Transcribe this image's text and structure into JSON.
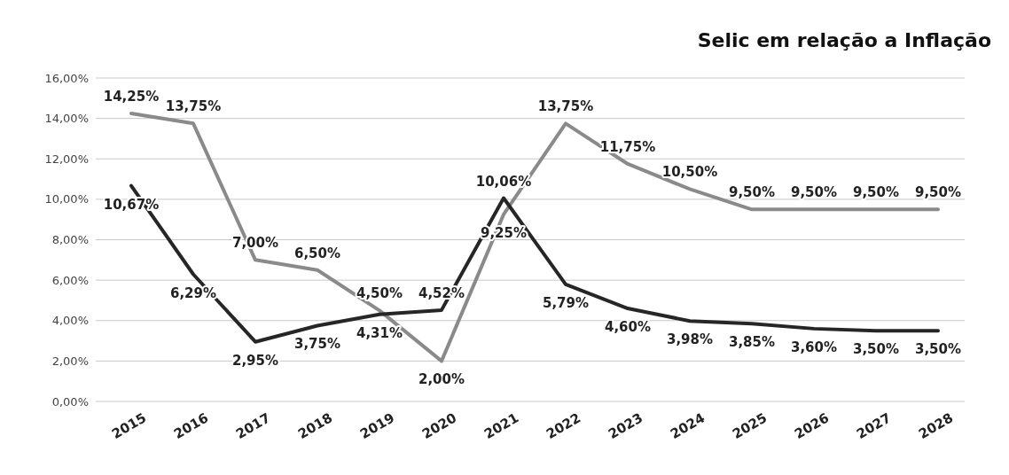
{
  "chart_data": {
    "type": "line",
    "title": "Selic em relação a Inflação",
    "categories": [
      "2015",
      "2016",
      "2017",
      "2018",
      "2019",
      "2020",
      "2021",
      "2022",
      "2023",
      "2024",
      "2025",
      "2026",
      "2027",
      "2028"
    ],
    "series": [
      {
        "color": "#8a8a8a",
        "values": [
          14.25,
          13.75,
          7.0,
          6.5,
          4.5,
          2.0,
          9.25,
          13.75,
          11.75,
          10.5,
          9.5,
          9.5,
          9.5,
          9.5
        ],
        "value_labels": [
          "14,25%",
          "13,75%",
          "7,00%",
          "6,50%",
          "4,50%",
          "2,00%",
          "9,25%",
          "13,75%",
          "11,75%",
          "10,50%",
          "9,50%",
          "9,50%",
          "9,50%",
          "9,50%"
        ]
      },
      {
        "color": "#262626",
        "values": [
          10.67,
          6.29,
          2.95,
          3.75,
          4.31,
          4.52,
          10.06,
          5.79,
          4.6,
          3.98,
          3.85,
          3.6,
          3.5,
          3.5
        ],
        "value_labels": [
          "10,67%",
          "6,29%",
          "2,95%",
          "3,75%",
          "4,31%",
          "4,52%",
          "10,06%",
          "5,79%",
          "4,60%",
          "3,98%",
          "3,85%",
          "3,60%",
          "3,50%",
          "3,50%"
        ]
      }
    ],
    "ylim": [
      0,
      16
    ],
    "yticks": [
      {
        "value": 0,
        "label": "0,00%"
      },
      {
        "value": 2,
        "label": "2,00%"
      },
      {
        "value": 4,
        "label": "4,00%"
      },
      {
        "value": 6,
        "label": "6,00%"
      },
      {
        "value": 8,
        "label": "8,00%"
      },
      {
        "value": 10,
        "label": "10,00%"
      },
      {
        "value": 12,
        "label": "12,00%"
      },
      {
        "value": 14,
        "label": "14,00%"
      },
      {
        "value": 16,
        "label": "16,00%"
      }
    ],
    "grid": "y",
    "marker": "none",
    "line_style": "solid"
  }
}
